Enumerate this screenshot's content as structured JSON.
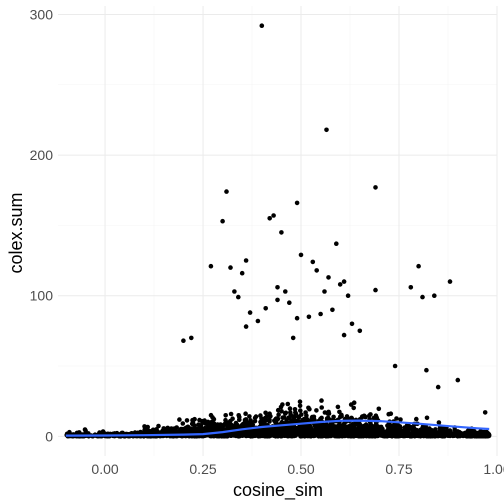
{
  "chart_data": {
    "type": "scatter",
    "title": "",
    "xlabel": "cosine_sim",
    "ylabel": "colex.sum",
    "xlim": [
      -0.12,
      1.0
    ],
    "ylim": [
      -14,
      306
    ],
    "x_ticks": [
      0,
      0.25,
      0.5,
      0.75,
      1.0
    ],
    "x_tick_labels": [
      "0.00",
      "0.25",
      "0.50",
      "0.75",
      "1.00"
    ],
    "y_ticks": [
      0,
      100,
      200,
      300
    ],
    "y_tick_labels": [
      "0",
      "100",
      "200",
      "300"
    ],
    "grid": true,
    "legend": "none",
    "point_color": "#000000",
    "smooth_color": "#3366ff",
    "outliers": [
      {
        "x": 0.4,
        "y": 292
      },
      {
        "x": 0.565,
        "y": 218
      },
      {
        "x": 0.69,
        "y": 177
      },
      {
        "x": 0.31,
        "y": 174
      },
      {
        "x": 0.49,
        "y": 166
      },
      {
        "x": 0.43,
        "y": 157
      },
      {
        "x": 0.42,
        "y": 155
      },
      {
        "x": 0.3,
        "y": 153
      },
      {
        "x": 0.45,
        "y": 145
      },
      {
        "x": 0.59,
        "y": 137
      },
      {
        "x": 0.5,
        "y": 129
      },
      {
        "x": 0.36,
        "y": 125
      },
      {
        "x": 0.53,
        "y": 124
      },
      {
        "x": 0.27,
        "y": 121
      },
      {
        "x": 0.8,
        "y": 121
      },
      {
        "x": 0.32,
        "y": 120
      },
      {
        "x": 0.54,
        "y": 118
      },
      {
        "x": 0.35,
        "y": 116
      },
      {
        "x": 0.57,
        "y": 113
      },
      {
        "x": 0.88,
        "y": 110
      },
      {
        "x": 0.61,
        "y": 110
      },
      {
        "x": 0.6,
        "y": 108
      },
      {
        "x": 0.44,
        "y": 106
      },
      {
        "x": 0.78,
        "y": 106
      },
      {
        "x": 0.69,
        "y": 104
      },
      {
        "x": 0.33,
        "y": 103
      },
      {
        "x": 0.46,
        "y": 103
      },
      {
        "x": 0.56,
        "y": 103
      },
      {
        "x": 0.81,
        "y": 99
      },
      {
        "x": 0.84,
        "y": 100
      },
      {
        "x": 0.34,
        "y": 99
      },
      {
        "x": 0.62,
        "y": 100
      },
      {
        "x": 0.44,
        "y": 97
      },
      {
        "x": 0.47,
        "y": 95
      },
      {
        "x": 0.41,
        "y": 91
      },
      {
        "x": 0.58,
        "y": 90
      },
      {
        "x": 0.37,
        "y": 88
      },
      {
        "x": 0.55,
        "y": 87
      },
      {
        "x": 0.52,
        "y": 85
      },
      {
        "x": 0.49,
        "y": 84
      },
      {
        "x": 0.39,
        "y": 82
      },
      {
        "x": 0.63,
        "y": 80
      },
      {
        "x": 0.36,
        "y": 78
      },
      {
        "x": 0.65,
        "y": 75
      },
      {
        "x": 0.22,
        "y": 70
      },
      {
        "x": 0.2,
        "y": 68
      },
      {
        "x": 0.61,
        "y": 72
      },
      {
        "x": 0.48,
        "y": 70
      },
      {
        "x": 0.74,
        "y": 50
      },
      {
        "x": 0.82,
        "y": 47
      },
      {
        "x": 0.9,
        "y": 40
      },
      {
        "x": 0.85,
        "y": 35
      },
      {
        "x": 0.97,
        "y": 17
      }
    ],
    "cloud": {
      "n_points": 2600,
      "x_range": [
        -0.1,
        0.98
      ],
      "x_peak": 0.5,
      "note": "dense cloud of points near y = 0, upper envelope rising to about y = 60 near x = 0.5"
    },
    "smooth_line": {
      "x": [
        -0.1,
        0.0,
        0.1,
        0.2,
        0.25,
        0.3,
        0.35,
        0.4,
        0.45,
        0.5,
        0.55,
        0.6,
        0.65,
        0.7,
        0.75,
        0.8,
        0.85,
        0.9,
        0.95,
        0.98
      ],
      "y": [
        0.5,
        0.6,
        0.8,
        1.2,
        1.6,
        3.0,
        5.0,
        6.6,
        7.8,
        9.0,
        10.2,
        11.0,
        11.2,
        10.8,
        10.0,
        9.0,
        7.8,
        6.8,
        5.7,
        5.2
      ]
    }
  }
}
